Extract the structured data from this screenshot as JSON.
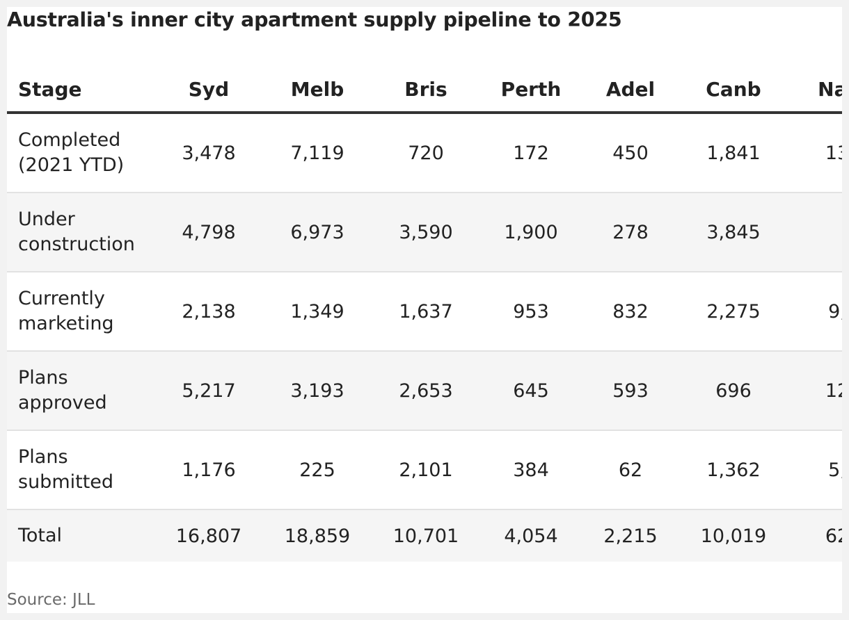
{
  "title": "Australia's inner city apartment supply pipeline to 2025",
  "source": "Source: JLL",
  "chart_data": {
    "type": "table",
    "title": "Australia's inner city apartment supply pipeline to 2025",
    "columns": [
      "Stage",
      "Syd",
      "Melb",
      "Bris",
      "Perth",
      "Adel",
      "Canb",
      "Nat"
    ],
    "rows": [
      {
        "stage": "Completed (2021 YTD)",
        "values": [
          "3,478",
          "7,119",
          "720",
          "172",
          "450",
          "1,841",
          "13"
        ]
      },
      {
        "stage": "Under construction",
        "values": [
          "4,798",
          "6,973",
          "3,590",
          "1,900",
          "278",
          "3,845",
          ""
        ]
      },
      {
        "stage": "Currently marketing",
        "values": [
          "2,138",
          "1,349",
          "1,637",
          "953",
          "832",
          "2,275",
          "9,"
        ]
      },
      {
        "stage": "Plans approved",
        "values": [
          "5,217",
          "3,193",
          "2,653",
          "645",
          "593",
          "696",
          "12"
        ]
      },
      {
        "stage": "Plans submitted",
        "values": [
          "1,176",
          "225",
          "2,101",
          "384",
          "62",
          "1,362",
          "5,"
        ]
      }
    ],
    "total": {
      "stage": "Total",
      "values": [
        "16,807",
        "18,859",
        "10,701",
        "4,054",
        "2,215",
        "10,019",
        "62"
      ]
    },
    "source": "Source: JLL"
  }
}
